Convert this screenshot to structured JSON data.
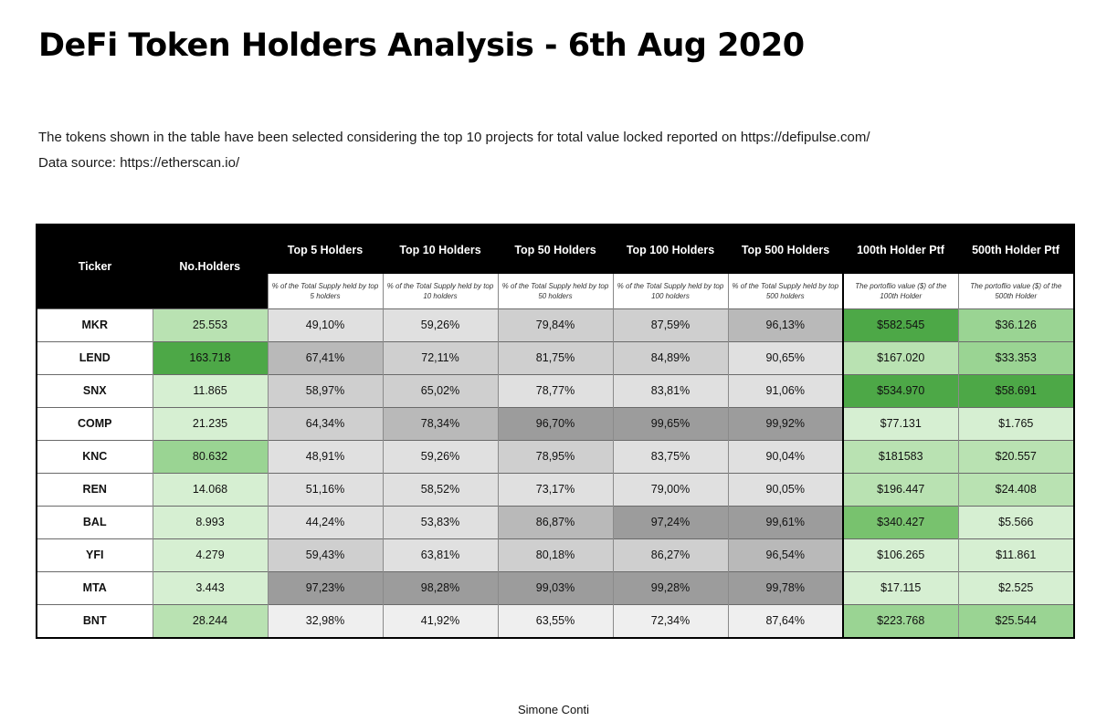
{
  "title": "DeFi Token Holders Analysis - 6th Aug 2020",
  "description": {
    "line1": "The tokens shown in the table have been selected considering the top 10 projects for total value locked reported on https://defipulse.com/",
    "line2": "Data source: https://etherscan.io/"
  },
  "table": {
    "headers": {
      "ticker": "Ticker",
      "holders": "No.Holders",
      "top5": "Top 5 Holders",
      "top10": "Top 10 Holders",
      "top50": "Top 50 Holders",
      "top100": "Top 100 Holders",
      "top500": "Top 500 Holders",
      "ptf100": "100th Holder Ptf",
      "ptf500": "500th Holder Ptf"
    },
    "subheaders": {
      "top5": "% of the Total Supply held by top 5 holders",
      "top10": "% of the Total Supply held by top 10 holders",
      "top50": "% of the Total Supply held by top 50 holders",
      "top100": "% of the Total Supply held by top 100 holders",
      "top500": "% of the Total Supply held by top 500 holders",
      "ptf100": "The portoflio value ($) of the 100th Holder",
      "ptf500": "The portoflio value ($) of the 500th Holder"
    },
    "rows": [
      {
        "ticker": "MKR",
        "holders": "25.553",
        "top5": "49,10%",
        "top10": "59,26%",
        "top50": "79,84%",
        "top100": "87,59%",
        "top500": "96,13%",
        "ptf100": "$582.545",
        "ptf500": "$36.126"
      },
      {
        "ticker": "LEND",
        "holders": "163.718",
        "top5": "67,41%",
        "top10": "72,11%",
        "top50": "81,75%",
        "top100": "84,89%",
        "top500": "90,65%",
        "ptf100": "$167.020",
        "ptf500": "$33.353"
      },
      {
        "ticker": "SNX",
        "holders": "11.865",
        "top5": "58,97%",
        "top10": "65,02%",
        "top50": "78,77%",
        "top100": "83,81%",
        "top500": "91,06%",
        "ptf100": "$534.970",
        "ptf500": "$58.691"
      },
      {
        "ticker": "COMP",
        "holders": "21.235",
        "top5": "64,34%",
        "top10": "78,34%",
        "top50": "96,70%",
        "top100": "99,65%",
        "top500": "99,92%",
        "ptf100": "$77.131",
        "ptf500": "$1.765"
      },
      {
        "ticker": "KNC",
        "holders": "80.632",
        "top5": "48,91%",
        "top10": "59,26%",
        "top50": "78,95%",
        "top100": "83,75%",
        "top500": "90,04%",
        "ptf100": "$181583",
        "ptf500": "$20.557"
      },
      {
        "ticker": "REN",
        "holders": "14.068",
        "top5": "51,16%",
        "top10": "58,52%",
        "top50": "73,17%",
        "top100": "79,00%",
        "top500": "90,05%",
        "ptf100": "$196.447",
        "ptf500": "$24.408"
      },
      {
        "ticker": "BAL",
        "holders": "8.993",
        "top5": "44,24%",
        "top10": "53,83%",
        "top50": "86,87%",
        "top100": "97,24%",
        "top500": "99,61%",
        "ptf100": "$340.427",
        "ptf500": "$5.566"
      },
      {
        "ticker": "YFI",
        "holders": "4.279",
        "top5": "59,43%",
        "top10": "63,81%",
        "top50": "80,18%",
        "top100": "86,27%",
        "top500": "96,54%",
        "ptf100": "$106.265",
        "ptf500": "$11.861"
      },
      {
        "ticker": "MTA",
        "holders": "3.443",
        "top5": "97,23%",
        "top10": "98,28%",
        "top50": "99,03%",
        "top100": "99,28%",
        "top500": "99,78%",
        "ptf100": "$17.115",
        "ptf500": "$2.525"
      },
      {
        "ticker": "BNT",
        "holders": "28.244",
        "top5": "32,98%",
        "top10": "41,92%",
        "top50": "63,55%",
        "top100": "72,34%",
        "top500": "87,64%",
        "ptf100": "$223.768",
        "ptf500": "$25.544"
      }
    ]
  },
  "footer": "Simone Conti"
}
